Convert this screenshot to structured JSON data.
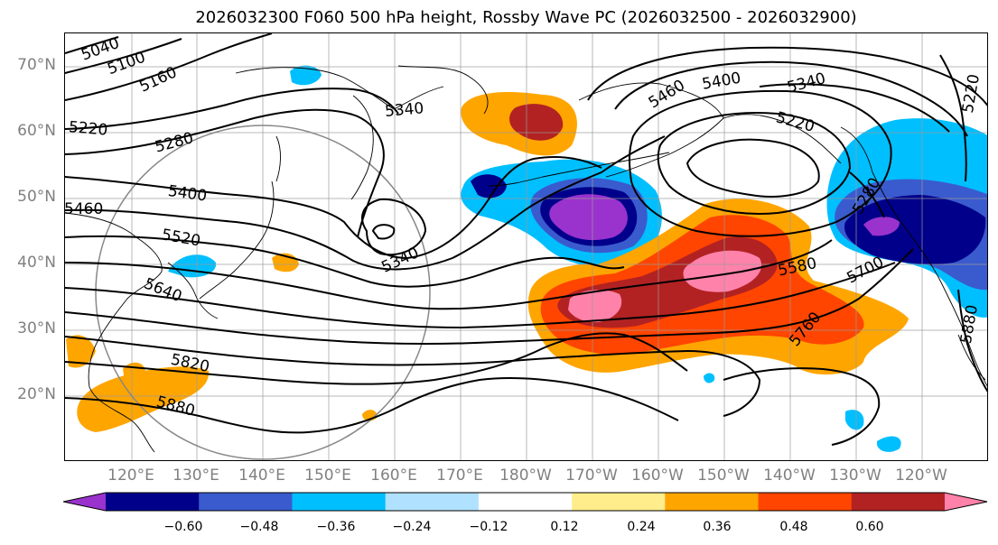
{
  "title": "2026032300 F060 500 hPa height, Rossby Wave PC (2026032500 - 2026032900)",
  "lat_labels": [
    "70°N",
    "60°N",
    "50°N",
    "40°N",
    "30°N",
    "20°N"
  ],
  "lon_labels": [
    "120°E",
    "130°E",
    "140°E",
    "150°E",
    "160°E",
    "170°E",
    "180°W",
    "170°W",
    "160°W",
    "150°W",
    "140°W",
    "130°W",
    "120°W"
  ],
  "contour_labels": [
    "5040",
    "5100",
    "5160",
    "5220",
    "5280",
    "5340",
    "5400",
    "5460",
    "5520",
    "5640",
    "5820",
    "5880",
    "5340",
    "5460",
    "5400",
    "5340",
    "5220",
    "5220",
    "5280",
    "5580",
    "5700",
    "5760",
    "5880"
  ],
  "colorbar": {
    "colors": [
      "#9a32cd",
      "#00008b",
      "#3a5bcd",
      "#00bfff",
      "#b0e2ff",
      "#ffffff",
      "#ffec8b",
      "#ffa500",
      "#ff4500",
      "#b22222",
      "#ff82ab"
    ],
    "tick_labels": [
      "−0.60",
      "−0.48",
      "−0.36",
      "−0.24",
      "−0.12",
      "0.12",
      "0.24",
      "0.36",
      "0.48",
      "0.60"
    ]
  }
}
